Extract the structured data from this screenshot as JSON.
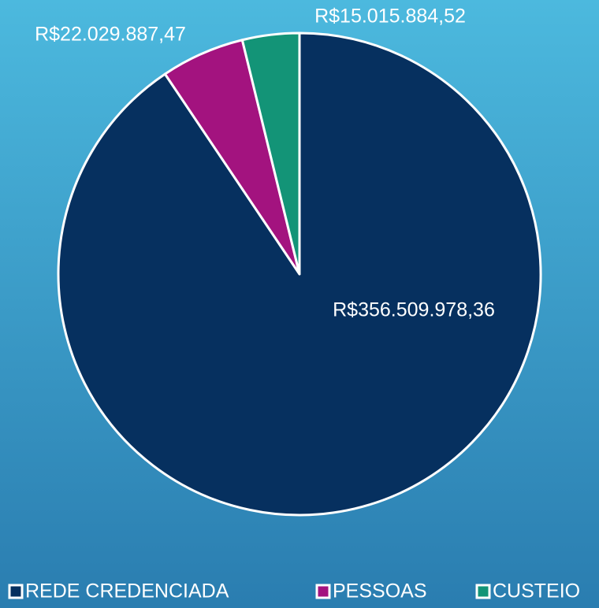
{
  "chart_data": {
    "type": "pie",
    "categories": [
      "REDE CREDENCIADA",
      "PESSOAS",
      "CUSTEIO"
    ],
    "values": [
      356509978.36,
      22029887.47,
      15015884.52
    ],
    "value_labels": [
      "R$356.509.978,36",
      "R$22.029.887,47",
      "R$15.015.884,52"
    ],
    "colors": [
      "#06305f",
      "#a3137f",
      "#139477"
    ],
    "legend": "bottom"
  }
}
